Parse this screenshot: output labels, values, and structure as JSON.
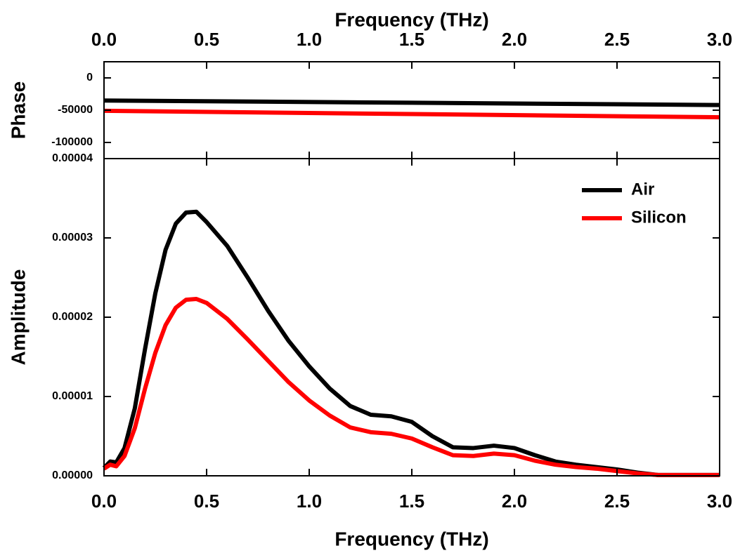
{
  "chart_data": [
    {
      "type": "line",
      "xlabel": "Frequency (THz)",
      "ylabel": "Phase",
      "xaxis": "top",
      "x": [
        0,
        1.5,
        3
      ],
      "series": [
        {
          "color": "#000000",
          "values": [
            -35000,
            -38500,
            -42000
          ]
        },
        {
          "color": "#ff0000",
          "values": [
            -51000,
            -56000,
            -61000
          ]
        }
      ],
      "xlim": [
        0,
        3
      ],
      "xticks": [
        {
          "value": 0,
          "label": "0.0"
        },
        0.5,
        {
          "value": 1,
          "label": "1.0"
        },
        1.5,
        {
          "value": 2,
          "label": "2.0"
        },
        2.5,
        {
          "value": 3,
          "label": "3.0"
        }
      ],
      "ylim": [
        -125000,
        25000
      ],
      "yticks": [
        0,
        -50000,
        -100000
      ]
    },
    {
      "type": "line",
      "xlabel": "Frequency (THz)",
      "ylabel": "Amplitude",
      "xaxis": "bottom",
      "legend": "upper right",
      "x": [
        0,
        0.03,
        0.06,
        0.1,
        0.15,
        0.2,
        0.25,
        0.3,
        0.35,
        0.4,
        0.45,
        0.5,
        0.6,
        0.7,
        0.8,
        0.9,
        1.0,
        1.1,
        1.2,
        1.3,
        1.4,
        1.5,
        1.6,
        1.7,
        1.8,
        1.9,
        2.0,
        2.1,
        2.2,
        2.3,
        2.4,
        2.5,
        2.6,
        2.7,
        2.8,
        2.9,
        3.0
      ],
      "series": [
        {
          "name": "Air",
          "color": "#000000",
          "values": [
            1e-06,
            1.8e-06,
            1.7e-06,
            3.5e-06,
            8.5e-06,
            1.6e-05,
            2.3e-05,
            2.85e-05,
            3.18e-05,
            3.32e-05,
            3.33e-05,
            3.2e-05,
            2.9e-05,
            2.5e-05,
            2.08e-05,
            1.7e-05,
            1.38e-05,
            1.1e-05,
            8.8e-06,
            7.7e-06,
            7.5e-06,
            6.8e-06,
            5e-06,
            3.6e-06,
            3.5e-06,
            3.8e-06,
            3.5e-06,
            2.6e-06,
            1.8e-06,
            1.4e-06,
            1.1e-06,
            8e-07,
            4e-07,
            1e-07,
            1e-07,
            1e-07,
            1e-07
          ]
        },
        {
          "name": "Silicon",
          "color": "#ff0000",
          "values": [
            9e-07,
            1.4e-06,
            1.2e-06,
            2.5e-06,
            6e-06,
            1.1e-05,
            1.55e-05,
            1.9e-05,
            2.12e-05,
            2.22e-05,
            2.23e-05,
            2.18e-05,
            1.98e-05,
            1.72e-05,
            1.45e-05,
            1.18e-05,
            9.5e-06,
            7.6e-06,
            6.1e-06,
            5.5e-06,
            5.3e-06,
            4.7e-06,
            3.6e-06,
            2.6e-06,
            2.5e-06,
            2.8e-06,
            2.6e-06,
            1.9e-06,
            1.4e-06,
            1.1e-06,
            9e-07,
            6e-07,
            3e-07,
            1e-07,
            1e-07,
            1e-07,
            1e-07
          ]
        }
      ],
      "xlim": [
        0,
        3
      ],
      "xticks": [
        {
          "value": 0,
          "label": "0.0"
        },
        0.5,
        {
          "value": 1,
          "label": "1.0"
        },
        1.5,
        {
          "value": 2,
          "label": "2.0"
        },
        2.5,
        {
          "value": 3,
          "label": "3.0"
        }
      ],
      "ylim": [
        0,
        4e-05
      ],
      "yticks": [
        {
          "value": 0,
          "label": "0.00000"
        },
        {
          "value": 1e-05,
          "label": "0.00001"
        },
        {
          "value": 2e-05,
          "label": "0.00002"
        },
        {
          "value": 3e-05,
          "label": "0.00003"
        },
        {
          "value": 4e-05,
          "label": "0.00004"
        }
      ]
    }
  ]
}
